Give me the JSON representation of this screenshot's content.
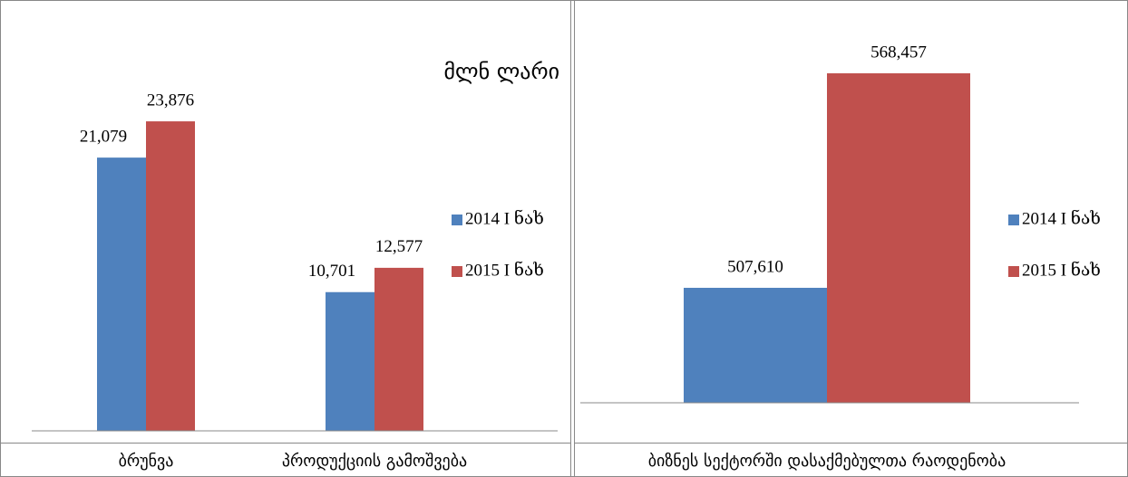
{
  "chart_data": [
    {
      "type": "bar",
      "annotation": "მლნ ლარი",
      "categories": [
        "ბრუნვა",
        "პროდუქციის გამოშვება"
      ],
      "series": [
        {
          "name": "2014 I ნახ",
          "color": "#4f81bd",
          "values": [
            21079,
            10701
          ],
          "value_labels": [
            "21,079",
            "10,701"
          ]
        },
        {
          "name": "2015 I ნახ",
          "color": "#c0504d",
          "values": [
            23876,
            12577
          ],
          "value_labels": [
            "23,876",
            "12,577"
          ]
        }
      ],
      "ylim": [
        0,
        28000
      ],
      "legend": "right"
    },
    {
      "type": "bar",
      "categories": [
        "ბიზნეს სექტორში დასაქმებულთა რაოდენობა"
      ],
      "series": [
        {
          "name": "2014 I ნახ",
          "color": "#4f81bd",
          "values": [
            507610
          ],
          "value_labels": [
            "507,610"
          ]
        },
        {
          "name": "2015 I ნახ",
          "color": "#c0504d",
          "values": [
            568457
          ],
          "value_labels": [
            "568,457"
          ]
        }
      ],
      "ylim": [
        475000,
        580000
      ],
      "legend": "right"
    }
  ]
}
